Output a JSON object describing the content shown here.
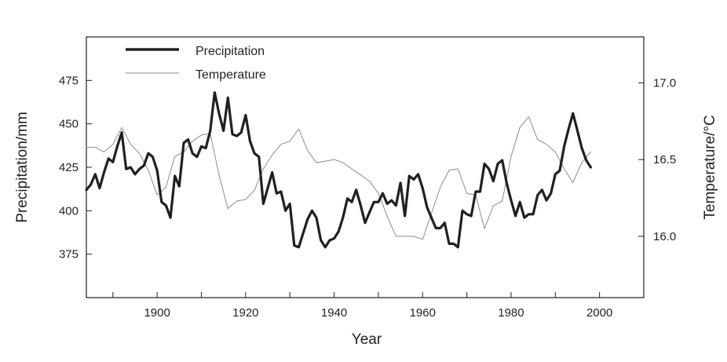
{
  "chart_data": {
    "type": "line",
    "xlabel": "Year",
    "ylabel_left": "Precipitation/mm",
    "ylabel_right": "Temperature/°C",
    "xlim": [
      1884,
      2010
    ],
    "ylim_left": [
      350,
      500
    ],
    "ylim_right": [
      15.6,
      17.3
    ],
    "x_ticks": [
      "1900",
      "1920",
      "1940",
      "1960",
      "1980",
      "2000"
    ],
    "y_ticks_left": [
      "375",
      "400",
      "425",
      "450",
      "475"
    ],
    "y_ticks_right": [
      "16.0",
      "16.5",
      "17.0"
    ],
    "legend_position": "top-left",
    "grid": false,
    "series": [
      {
        "name": "Precipitation",
        "axis": "left",
        "color": "#231f20",
        "x": [
          1884,
          1885,
          1886,
          1887,
          1888,
          1889,
          1890,
          1891,
          1892,
          1893,
          1894,
          1895,
          1896,
          1897,
          1898,
          1899,
          1900,
          1901,
          1902,
          1903,
          1904,
          1905,
          1906,
          1907,
          1908,
          1909,
          1910,
          1911,
          1912,
          1913,
          1914,
          1915,
          1916,
          1917,
          1918,
          1919,
          1920,
          1921,
          1922,
          1923,
          1924,
          1925,
          1926,
          1927,
          1928,
          1929,
          1930,
          1931,
          1932,
          1933,
          1934,
          1935,
          1936,
          1937,
          1938,
          1939,
          1940,
          1941,
          1942,
          1943,
          1944,
          1945,
          1946,
          1947,
          1948,
          1949,
          1950,
          1951,
          1952,
          1953,
          1954,
          1955,
          1956,
          1957,
          1958,
          1959,
          1960,
          1961,
          1962,
          1963,
          1964,
          1965,
          1966,
          1967,
          1968,
          1969,
          1970,
          1971,
          1972,
          1973,
          1974,
          1975,
          1976,
          1977,
          1978,
          1979,
          1980,
          1981,
          1982,
          1983,
          1984,
          1985,
          1986,
          1987,
          1988,
          1989,
          1990,
          1991,
          1992,
          1993,
          1994,
          1995,
          1996,
          1997,
          1998
        ],
        "values": [
          412,
          415,
          421,
          413,
          422,
          430,
          428,
          437,
          445,
          424,
          425,
          421,
          424,
          426,
          433,
          431,
          423,
          405,
          403,
          396,
          420,
          414,
          439,
          441,
          433,
          431,
          437,
          436,
          446,
          468,
          456,
          446,
          465,
          444,
          443,
          445,
          455,
          440,
          433,
          431,
          404,
          413,
          422,
          410,
          411,
          400,
          404,
          380,
          379,
          387,
          395,
          400,
          396,
          383,
          379,
          383,
          384,
          388,
          396,
          407,
          405,
          412,
          403,
          393,
          399,
          405,
          405,
          410,
          404,
          406,
          403,
          416,
          397,
          420,
          418,
          421,
          413,
          402,
          396,
          390,
          390,
          393,
          381,
          381,
          379,
          400,
          398,
          397,
          411,
          411,
          427,
          424,
          417,
          427,
          429,
          416,
          406,
          397,
          405,
          396,
          398,
          398,
          409,
          412,
          406,
          410,
          421,
          423,
          437,
          447,
          456,
          446,
          436,
          429,
          425
        ]
      },
      {
        "name": "Temperature",
        "axis": "right",
        "color": "#8c8c8c",
        "x": [
          1884,
          1886,
          1888,
          1890,
          1892,
          1894,
          1896,
          1898,
          1900,
          1902,
          1904,
          1906,
          1908,
          1910,
          1912,
          1914,
          1916,
          1918,
          1920,
          1922,
          1924,
          1926,
          1928,
          1930,
          1932,
          1934,
          1936,
          1938,
          1940,
          1942,
          1944,
          1946,
          1948,
          1950,
          1952,
          1954,
          1956,
          1958,
          1960,
          1962,
          1964,
          1966,
          1968,
          1970,
          1972,
          1974,
          1976,
          1978,
          1980,
          1982,
          1984,
          1986,
          1988,
          1990,
          1992,
          1994,
          1996,
          1998
        ],
        "values": [
          16.58,
          16.58,
          16.55,
          16.6,
          16.71,
          16.6,
          16.54,
          16.43,
          16.27,
          16.32,
          16.52,
          16.55,
          16.62,
          16.66,
          16.67,
          16.4,
          16.18,
          16.23,
          16.24,
          16.3,
          16.44,
          16.53,
          16.6,
          16.62,
          16.7,
          16.56,
          16.48,
          16.49,
          16.5,
          16.48,
          16.44,
          16.4,
          16.36,
          16.28,
          16.13,
          16.0,
          16.0,
          16.0,
          15.98,
          16.15,
          16.32,
          16.43,
          16.44,
          16.28,
          16.27,
          16.05,
          16.2,
          16.23,
          16.52,
          16.71,
          16.78,
          16.63,
          16.6,
          16.55,
          16.44,
          16.35,
          16.48,
          16.55
        ]
      }
    ]
  }
}
